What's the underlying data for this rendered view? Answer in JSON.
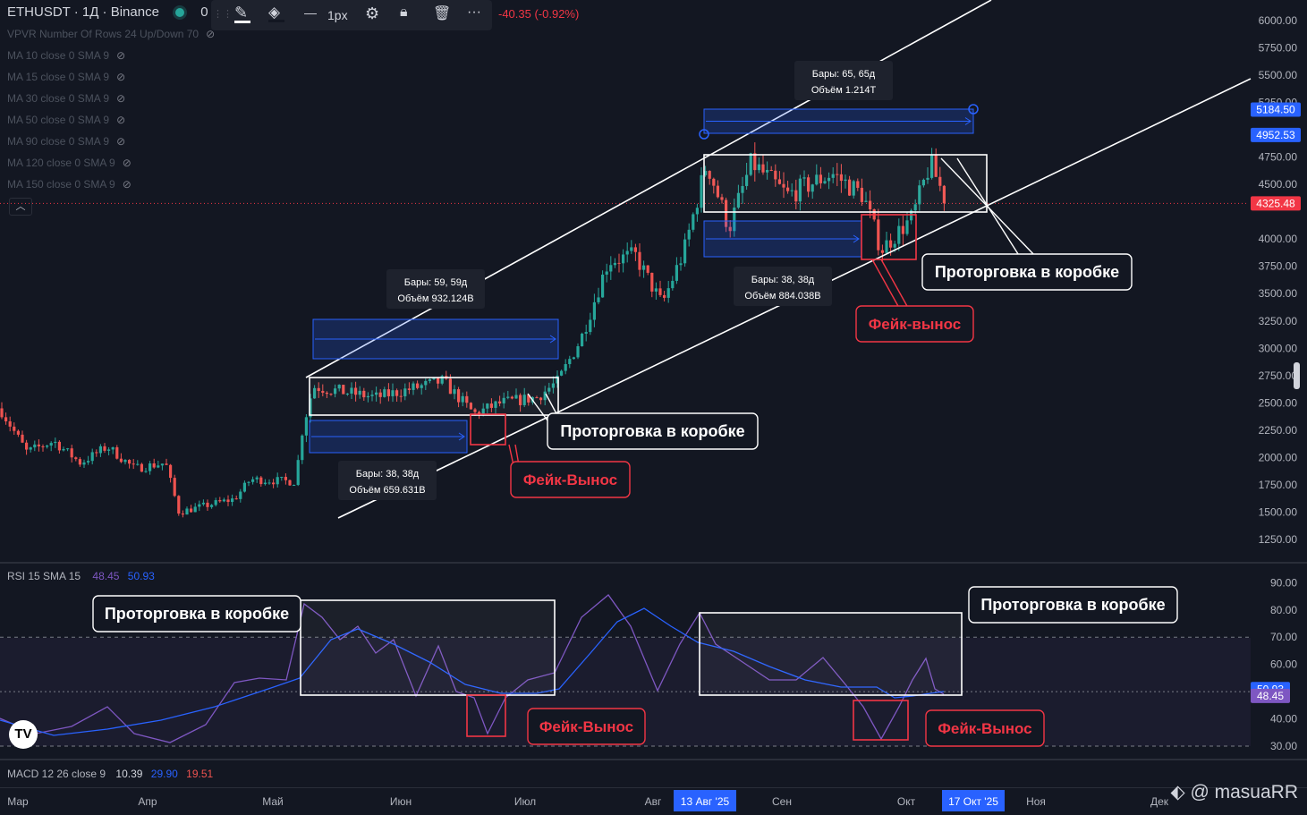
{
  "header": {
    "symbol_line": "ETHUSDT · 1Д · Binance",
    "partial_value": "0",
    "stroke_width_label": "1px",
    "change": "-40.35 (-0.92%)"
  },
  "indicators": [
    {
      "label": "VPVR Number Of Rows 24 Up/Down 70"
    },
    {
      "label": "MA 10 close 0 SMA 9"
    },
    {
      "label": "MA 15 close 0 SMA 9"
    },
    {
      "label": "MA 30 close 0 SMA 9"
    },
    {
      "label": "MA 50 close 0 SMA 9"
    },
    {
      "label": "MA 90 close 0 SMA 9"
    },
    {
      "label": "MA 120 close 0 SMA 9"
    },
    {
      "label": "MA 150 close 0 SMA 9"
    }
  ],
  "price_axis": {
    "ticks": [
      "6000.00",
      "5750.00",
      "5500.00",
      "5250.00",
      "4750.00",
      "4500.00",
      "4000.00",
      "3750.00",
      "3500.00",
      "3250.00",
      "3000.00",
      "2750.00",
      "2500.00",
      "2250.00",
      "2000.00",
      "1750.00",
      "1500.00",
      "1250.00"
    ],
    "badges": [
      {
        "text": "5184.50",
        "price": 5184.5,
        "color": "#2962ff"
      },
      {
        "text": "4952.53",
        "price": 4952.53,
        "color": "#2962ff"
      },
      {
        "text": "4325.48",
        "price": 4325.48,
        "color": "#f23645"
      }
    ]
  },
  "rsi_pane": {
    "title": "RSI 15 SMA 15",
    "rsi_value": "48.45",
    "sma_value": "50.93",
    "ticks": [
      "90.00",
      "80.00",
      "70.00",
      "60.00",
      "40.00",
      "30.00"
    ],
    "badges": [
      {
        "text": "50.93",
        "value": 50.93,
        "color": "#2962ff"
      },
      {
        "text": "48.45",
        "value": 48.45,
        "color": "#7e57c2"
      }
    ]
  },
  "macd_pane": {
    "title": "MACD 12 26 close 9",
    "v1": "10.39",
    "v2": "29.90",
    "v3": "19.51"
  },
  "time_axis": {
    "labels": [
      "Мар",
      "Апр",
      "Май",
      "Июн",
      "Июл",
      "Авг",
      "Сен",
      "Окт",
      "Ноя",
      "Дек"
    ],
    "highlights": [
      "13 Авг '25",
      "17 Окт '25"
    ]
  },
  "annotations": {
    "boxes": [
      "Проторговка в коробке",
      "Проторговка в коробке"
    ],
    "fakes": [
      "Фейк-Вынос",
      "Фейк-вынос"
    ],
    "rsi_boxes": [
      "Проторговка в коробке",
      "Проторговка в коробке"
    ],
    "rsi_fakes": [
      "Фейк-Вынос",
      "Фейк-Вынос"
    ],
    "measures": [
      {
        "bars": "Бары: 59, 59д",
        "vol": "Объём 932.124B"
      },
      {
        "bars": "Бары: 38, 38д",
        "vol": "Объём 659.631B"
      },
      {
        "bars": "Бары: 65, 65д",
        "vol": "Объём 1.214T"
      },
      {
        "bars": "Бары: 38, 38д",
        "vol": "Объём 884.038B"
      }
    ]
  },
  "watermark": "@ masuaRR",
  "tv_logo": "TV",
  "colors": {
    "up": "#26a69a",
    "down": "#ef5350",
    "bg": "#131722",
    "rsi": "#7e57c2",
    "rsi_ma": "#2962ff",
    "note_red": "#f23645"
  },
  "chart_data": {
    "type": "candlestick",
    "symbol": "ETHUSDT",
    "timeframe": "1Д",
    "ylim": [
      1150,
      6100
    ],
    "last_price": 4325.48,
    "channel_note": "ascending channel drawn with two parallel white trendlines",
    "ranges": [
      {
        "label": "Проторговка в коробке",
        "period": "май–июл 2025",
        "low": 2420,
        "high": 2720
      },
      {
        "label": "Проторговка в коробке",
        "period": "авг–окт 2025",
        "low": 4220,
        "high": 4790
      }
    ],
    "key_points": [
      {
        "month": "Мар",
        "price": 2200
      },
      {
        "month": "Апр",
        "price": 1500
      },
      {
        "month": "Май",
        "price": 2500
      },
      {
        "month": "Июн",
        "price": 2500
      },
      {
        "month": "Июл",
        "price": 2550
      },
      {
        "month": "Авг",
        "price": 3700
      },
      {
        "month": "Сен",
        "price": 4400
      },
      {
        "month": "Окт",
        "price": 4300
      }
    ],
    "rsi": {
      "period": 15,
      "sma": 15,
      "rsi_value": 48.45,
      "sma_value": 50.93,
      "levels": [
        70,
        30
      ]
    },
    "macd": {
      "fast": 12,
      "slow": 26,
      "signal": 9,
      "values": [
        10.39,
        29.9,
        19.51
      ]
    }
  }
}
